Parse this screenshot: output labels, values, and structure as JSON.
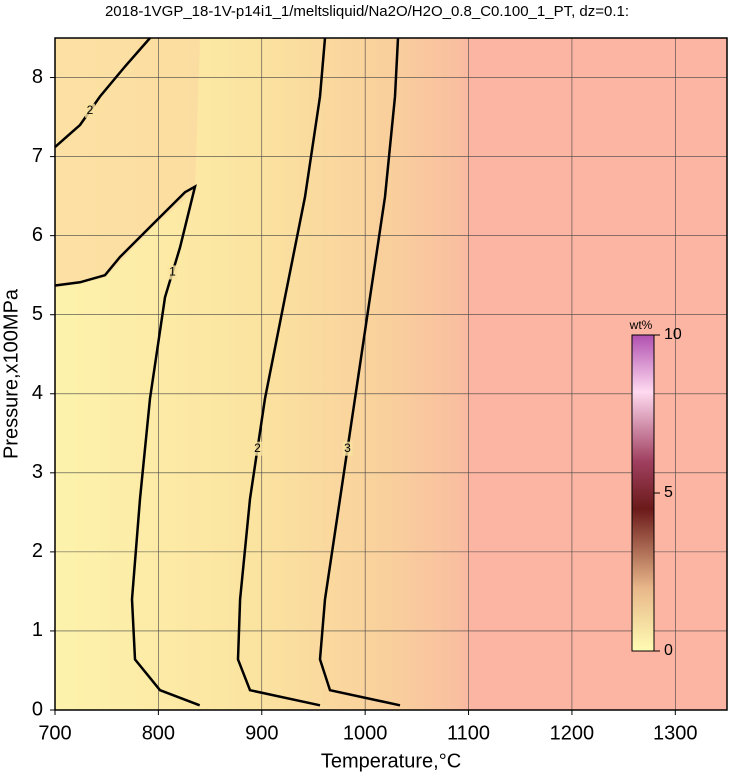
{
  "chart_data": {
    "type": "contour",
    "title": "2018-1VGP_18-1V-p14i1_1/meltsliquid/Na2O/H2O_0.8_C0.100_1_PT, dz=0.1:",
    "xlabel": "Temperature,°C",
    "ylabel": "Pressure,x100MPa",
    "xlim": [
      700,
      1350
    ],
    "ylim": [
      0,
      8.5
    ],
    "xticks": [
      700,
      800,
      900,
      1000,
      1100,
      1200,
      1300
    ],
    "yticks": [
      0,
      1,
      2,
      3,
      4,
      5,
      6,
      7,
      8
    ],
    "grid": true,
    "contours": [
      {
        "level": 1,
        "x": [
          840,
          801.6,
          777.4,
          774.5,
          782.2,
          791.9,
          806.4,
          820.9,
          835.4,
          825.7,
          791.9,
          762.9,
          748.4,
          724.2,
          700
        ],
        "y": [
          0.06,
          0.25,
          0.64,
          1.4,
          2.67,
          3.94,
          5.22,
          5.85,
          6.62,
          6.55,
          6.11,
          5.73,
          5.5,
          5.41,
          5.37
        ]
      },
      {
        "level": 2,
        "x": [
          956.3,
          888.6,
          877,
          879,
          888.6,
          903.1,
          922.5,
          941.8,
          956.3,
          961.2
        ],
        "y": [
          0.06,
          0.25,
          0.64,
          1.4,
          2.67,
          3.94,
          5.22,
          6.49,
          7.76,
          8.5
        ]
      },
      {
        "level": 3,
        "x": [
          1033.7,
          966,
          956.3,
          961.2,
          975.7,
          990.2,
          1004.7,
          1019.2,
          1028.9,
          1031.8
        ],
        "y": [
          0.06,
          0.25,
          0.64,
          1.4,
          2.67,
          3.94,
          5.22,
          6.49,
          7.76,
          8.5
        ]
      },
      {
        "level": 2,
        "x": [
          700,
          724.2,
          743.5,
          767.7,
          791.9
        ],
        "y": [
          7.12,
          7.4,
          7.76,
          8.14,
          8.5
        ]
      }
    ],
    "colorbar": {
      "label": "wt%",
      "lim": [
        0,
        10
      ],
      "ticks": [
        0,
        5,
        10
      ]
    }
  }
}
